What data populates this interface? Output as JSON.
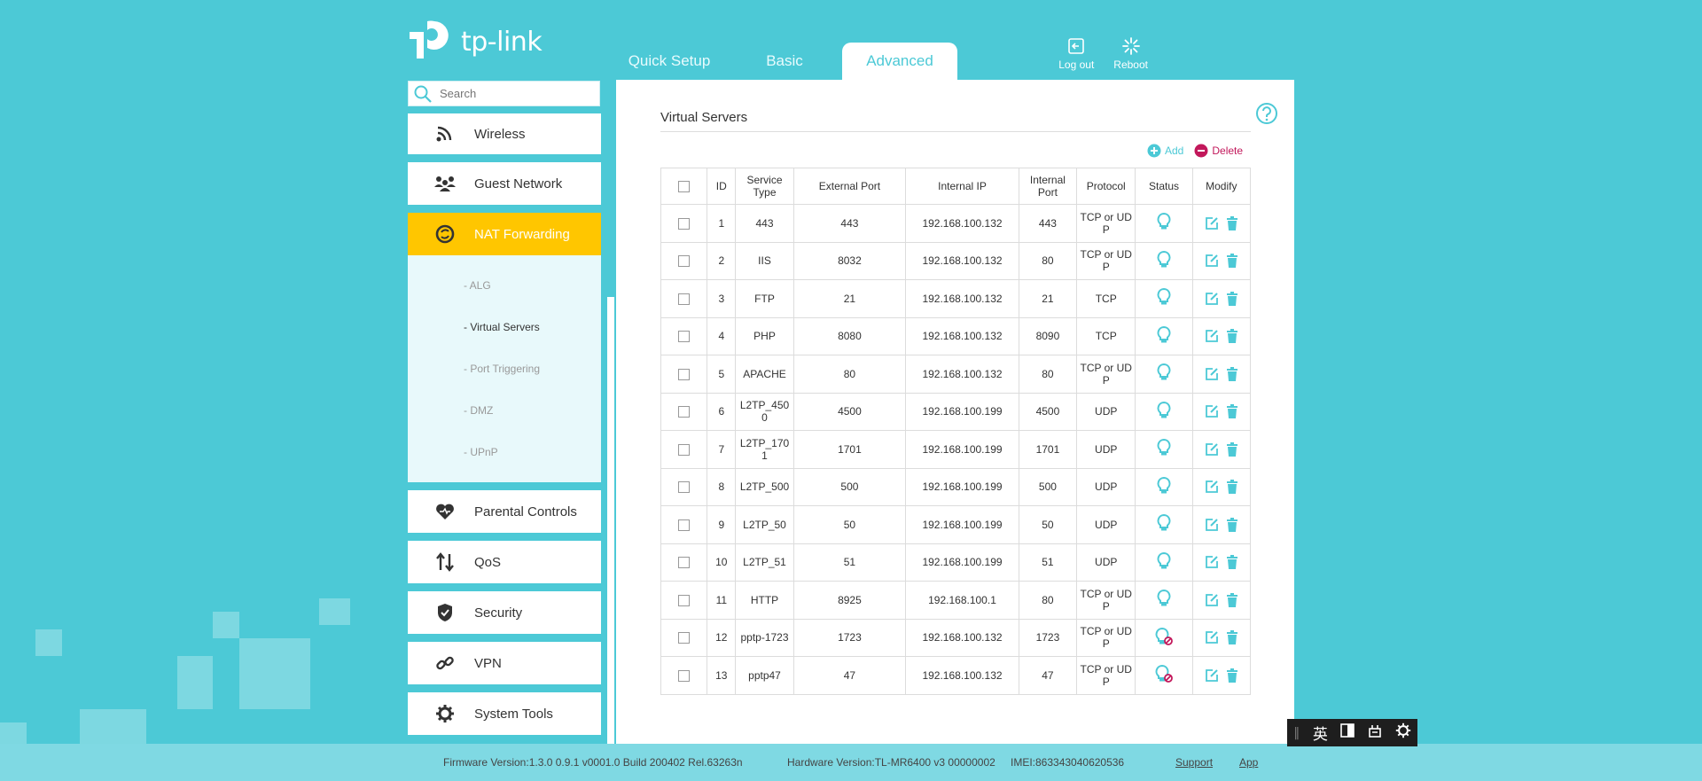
{
  "header": {
    "logo_text": "tp-link",
    "tabs": [
      {
        "label": "Quick Setup",
        "active": false
      },
      {
        "label": "Basic",
        "active": false
      },
      {
        "label": "Advanced",
        "active": true
      }
    ],
    "logout_label": "Log out",
    "reboot_label": "Reboot"
  },
  "search": {
    "placeholder": "Search"
  },
  "sidebar": {
    "items_top": [
      {
        "label": "Wireless",
        "icon": "wifi-icon"
      },
      {
        "label": "Guest Network",
        "icon": "guest-network-icon"
      }
    ],
    "active_item": {
      "label": "NAT Forwarding",
      "icon": "nat-forwarding-icon"
    },
    "subitems": [
      {
        "label": "- ALG",
        "active": false
      },
      {
        "label": "- Virtual Servers",
        "active": true
      },
      {
        "label": "- Port Triggering",
        "active": false
      },
      {
        "label": "- DMZ",
        "active": false
      },
      {
        "label": "- UPnP",
        "active": false
      }
    ],
    "items_bottom": [
      {
        "label": "Parental Controls",
        "icon": "heart-icon"
      },
      {
        "label": "QoS",
        "icon": "qos-arrows-icon"
      },
      {
        "label": "Security",
        "icon": "shield-icon"
      },
      {
        "label": "VPN",
        "icon": "link-icon"
      },
      {
        "label": "System Tools",
        "icon": "gear-icon"
      }
    ]
  },
  "content": {
    "title": "Virtual Servers",
    "add_label": "Add",
    "delete_label": "Delete",
    "columns": [
      "ID",
      "Service Type",
      "External Port",
      "Internal IP",
      "Internal Port",
      "Protocol",
      "Status",
      "Modify"
    ],
    "rows": [
      {
        "id": "1",
        "service": "443",
        "ext_port": "443",
        "ip": "192.168.100.132",
        "int_port": "443",
        "protocol": "TCP or UDP",
        "enabled": true
      },
      {
        "id": "2",
        "service": "IIS",
        "ext_port": "8032",
        "ip": "192.168.100.132",
        "int_port": "80",
        "protocol": "TCP or UDP",
        "enabled": true
      },
      {
        "id": "3",
        "service": "FTP",
        "ext_port": "21",
        "ip": "192.168.100.132",
        "int_port": "21",
        "protocol": "TCP",
        "enabled": true
      },
      {
        "id": "4",
        "service": "PHP",
        "ext_port": "8080",
        "ip": "192.168.100.132",
        "int_port": "8090",
        "protocol": "TCP",
        "enabled": true
      },
      {
        "id": "5",
        "service": "APACHE",
        "ext_port": "80",
        "ip": "192.168.100.132",
        "int_port": "80",
        "protocol": "TCP or UDP",
        "enabled": true
      },
      {
        "id": "6",
        "service": "L2TP_4500",
        "ext_port": "4500",
        "ip": "192.168.100.199",
        "int_port": "4500",
        "protocol": "UDP",
        "enabled": true
      },
      {
        "id": "7",
        "service": "L2TP_1701",
        "ext_port": "1701",
        "ip": "192.168.100.199",
        "int_port": "1701",
        "protocol": "UDP",
        "enabled": true
      },
      {
        "id": "8",
        "service": "L2TP_500",
        "ext_port": "500",
        "ip": "192.168.100.199",
        "int_port": "500",
        "protocol": "UDP",
        "enabled": true
      },
      {
        "id": "9",
        "service": "L2TP_50",
        "ext_port": "50",
        "ip": "192.168.100.199",
        "int_port": "50",
        "protocol": "UDP",
        "enabled": true
      },
      {
        "id": "10",
        "service": "L2TP_51",
        "ext_port": "51",
        "ip": "192.168.100.199",
        "int_port": "51",
        "protocol": "UDP",
        "enabled": true
      },
      {
        "id": "11",
        "service": "HTTP",
        "ext_port": "8925",
        "ip": "192.168.100.1",
        "int_port": "80",
        "protocol": "TCP or UDP",
        "enabled": true
      },
      {
        "id": "12",
        "service": "pptp-1723",
        "ext_port": "1723",
        "ip": "192.168.100.132",
        "int_port": "1723",
        "protocol": "TCP or UDP",
        "enabled": false
      },
      {
        "id": "13",
        "service": "pptp47",
        "ext_port": "47",
        "ip": "192.168.100.132",
        "int_port": "47",
        "protocol": "TCP or UDP",
        "enabled": false
      }
    ]
  },
  "footer": {
    "firmware": "Firmware Version:1.3.0 0.9.1 v0001.0 Build 200402 Rel.63263n",
    "hardware": "Hardware Version:TL-MR6400 v3 00000002",
    "imei": "IMEI:863343040620536",
    "support_label": "Support",
    "app_label": "App"
  },
  "ime": {
    "lang_char": "英"
  },
  "colors": {
    "accent": "#4cc9d6",
    "active_menu": "#ffc600",
    "delete": "#c2185b"
  }
}
